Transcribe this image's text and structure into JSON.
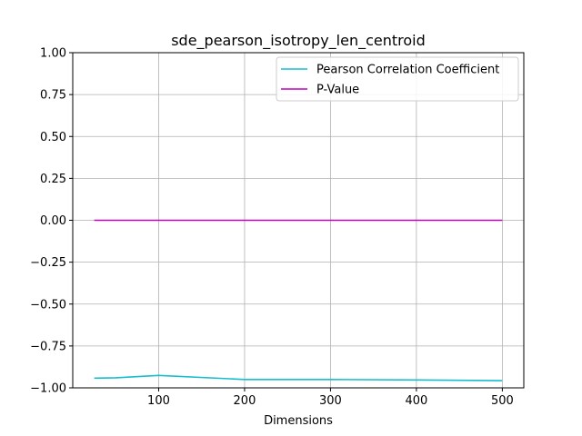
{
  "chart_data": {
    "type": "line",
    "title": "sde_pearson_isotropy_len_centroid",
    "xlabel": "Dimensions",
    "ylabel": "",
    "xlim": [
      0,
      525
    ],
    "ylim": [
      -1.0,
      1.0
    ],
    "xticks": [
      100,
      200,
      300,
      400,
      500
    ],
    "yticks": [
      -1.0,
      -0.75,
      -0.5,
      -0.25,
      0.0,
      0.25,
      0.5,
      0.75,
      1.0
    ],
    "xtick_labels": [
      "100",
      "200",
      "300",
      "400",
      "500"
    ],
    "ytick_labels": [
      "−1.00",
      "−0.75",
      "−0.50",
      "−0.25",
      "0.00",
      "0.25",
      "0.50",
      "0.75",
      "1.00"
    ],
    "grid": true,
    "legend_position": "top-right",
    "series": [
      {
        "name": "Pearson Correlation Coefficient",
        "color": "#17becf",
        "x": [
          25,
          50,
          100,
          200,
          300,
          400,
          500
        ],
        "y": [
          -0.942,
          -0.94,
          -0.926,
          -0.95,
          -0.95,
          -0.953,
          -0.957
        ]
      },
      {
        "name": "P-Value",
        "color": "#bf00bf",
        "x": [
          25,
          50,
          100,
          200,
          300,
          400,
          500
        ],
        "y": [
          0.0,
          0.0,
          0.0,
          0.0,
          0.0,
          0.0,
          0.0
        ]
      }
    ]
  }
}
